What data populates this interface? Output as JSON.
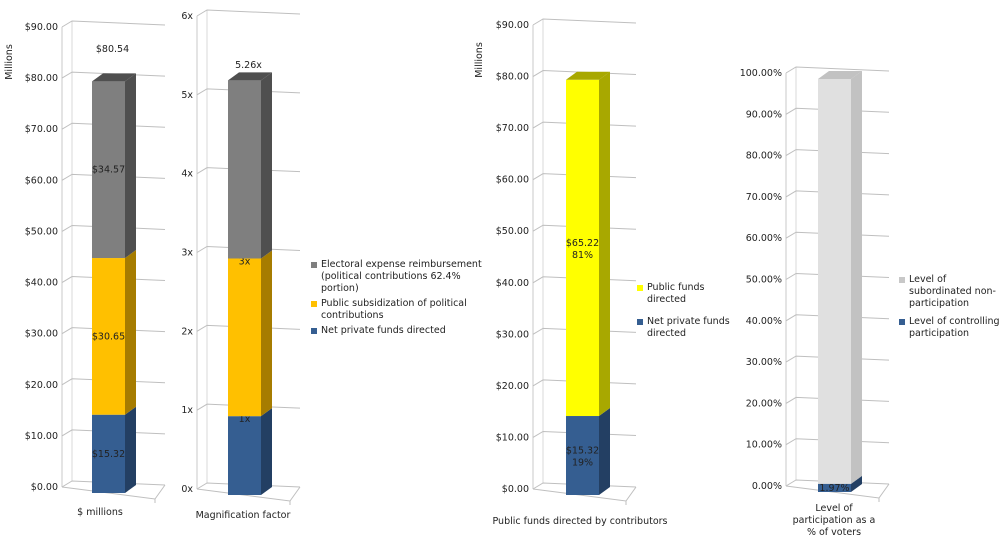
{
  "chart_data": [
    {
      "type": "bar",
      "stacked": true,
      "style": "3d-column",
      "ylabel": "Millions",
      "xlabel": "$ millions",
      "ylim": [
        0,
        90
      ],
      "tick_labels": [
        "$0.00",
        "$10.00",
        "$20.00",
        "$30.00",
        "$40.00",
        "$50.00",
        "$60.00",
        "$70.00",
        "$80.00",
        "$90.00"
      ],
      "total_label": "$80.54",
      "series": [
        {
          "name": "Net private funds directed",
          "value": 15.32,
          "label": "$15.32",
          "color": "#355e91",
          "side": "#233f63"
        },
        {
          "name": "Public subsidization of political contributions",
          "value": 30.65,
          "label": "$30.65",
          "color": "#ffc000",
          "side": "#a67c00"
        },
        {
          "name": "Electoral expense reimbursement (political contributions 62.4% portion)",
          "value": 34.57,
          "label": "$34.57",
          "color": "#7f7f7f",
          "side": "#4f4f4f"
        }
      ],
      "legend": "right"
    },
    {
      "type": "bar",
      "stacked": true,
      "style": "3d-column",
      "xlabel": "Magnification factor",
      "ylim": [
        0,
        6
      ],
      "tick_labels": [
        "0x",
        "1x",
        "2x",
        "3x",
        "4x",
        "5x",
        "6x"
      ],
      "total_label": "5.26x",
      "series": [
        {
          "value": 1,
          "label": "1x",
          "color": "#355e91",
          "side": "#233f63"
        },
        {
          "value": 2,
          "label": "3x",
          "color": "#ffc000",
          "side": "#a67c00"
        },
        {
          "value": 2.26,
          "label": "",
          "color": "#7f7f7f",
          "side": "#4f4f4f"
        }
      ]
    },
    {
      "type": "bar",
      "stacked": true,
      "style": "3d-column",
      "ylabel": "Millions",
      "xlabel": "Public funds directed by contributors",
      "ylim": [
        0,
        90
      ],
      "tick_labels": [
        "$0.00",
        "$10.00",
        "$20.00",
        "$30.00",
        "$40.00",
        "$50.00",
        "$60.00",
        "$70.00",
        "$80.00",
        "$90.00"
      ],
      "series": [
        {
          "name": "Net private funds directed",
          "value": 15.32,
          "label": "$15.32",
          "label2": "19%",
          "color": "#355e91",
          "side": "#233f63"
        },
        {
          "name": "Public funds directed",
          "value": 65.22,
          "label": "$65.22",
          "label2": "81%",
          "color": "#ffff00",
          "side": "#a8a800"
        }
      ],
      "legend": "right"
    },
    {
      "type": "bar",
      "stacked": true,
      "style": "3d-column",
      "xlabel": "Level of participation as a % of voters",
      "ylim": [
        0,
        100
      ],
      "tick_labels": [
        "0.00%",
        "10.00%",
        "20.00%",
        "30.00%",
        "40.00%",
        "50.00%",
        "60.00%",
        "70.00%",
        "80.00%",
        "90.00%",
        "100.00%"
      ],
      "series": [
        {
          "name": "Level of controlling participation",
          "value": 1.97,
          "label": "1.97%",
          "color": "#355e91",
          "side": "#233f63"
        },
        {
          "name": "Level of subordinated non-participation",
          "value": 98.03,
          "label": "",
          "color": "#e0e0e0",
          "side": "#c2c2c2"
        }
      ],
      "legend": "right"
    }
  ]
}
